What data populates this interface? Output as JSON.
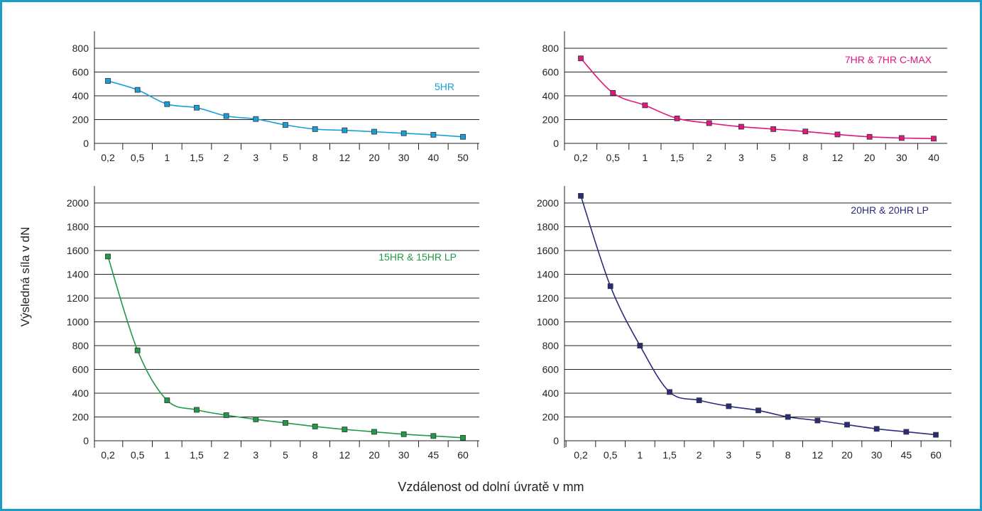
{
  "ylabel": "Výsledná síla v dN",
  "xlabel": "Vzdálenost od dolní úvratě v mm",
  "chart_data": [
    {
      "type": "line",
      "categories": [
        "0,2",
        "0,5",
        "1",
        "1,5",
        "2",
        "3",
        "5",
        "8",
        "12",
        "20",
        "30",
        "40",
        "50"
      ],
      "series": [
        {
          "name": "5HR",
          "values": [
            525,
            450,
            330,
            300,
            230,
            205,
            155,
            120,
            110,
            98,
            85,
            72,
            55
          ],
          "color": "#1a9ed9"
        }
      ],
      "yticks": [
        0,
        200,
        400,
        600,
        800
      ],
      "ylim": [
        0,
        800
      ]
    },
    {
      "type": "line",
      "categories": [
        "0,2",
        "0,5",
        "1",
        "1,5",
        "2",
        "3",
        "5",
        "8",
        "12",
        "20",
        "30",
        "40"
      ],
      "series": [
        {
          "name": "7HR & 7HR C-MAX",
          "values": [
            715,
            425,
            320,
            210,
            170,
            140,
            120,
            100,
            75,
            55,
            45,
            40
          ],
          "color": "#e0177d"
        }
      ],
      "yticks": [
        0,
        200,
        400,
        600,
        800
      ],
      "ylim": [
        0,
        800
      ]
    },
    {
      "type": "line",
      "categories": [
        "0,2",
        "0,5",
        "1",
        "1,5",
        "2",
        "3",
        "5",
        "8",
        "12",
        "20",
        "30",
        "45",
        "60"
      ],
      "series": [
        {
          "name": "15HR & 15HR LP",
          "values": [
            1550,
            760,
            340,
            260,
            215,
            180,
            150,
            120,
            95,
            75,
            55,
            40,
            25
          ],
          "color": "#1f9a48"
        }
      ],
      "yticks": [
        0,
        200,
        400,
        600,
        800,
        1000,
        1200,
        1400,
        1600,
        1800,
        2000
      ],
      "ylim": [
        0,
        2000
      ]
    },
    {
      "type": "line",
      "categories": [
        "0,2",
        "0,5",
        "1",
        "1,5",
        "2",
        "3",
        "5",
        "8",
        "12",
        "20",
        "30",
        "45",
        "60"
      ],
      "series": [
        {
          "name": "20HR & 20HR LP",
          "values": [
            2060,
            1300,
            800,
            410,
            340,
            290,
            255,
            200,
            170,
            135,
            100,
            75,
            50
          ],
          "color": "#2c2b7a"
        }
      ],
      "yticks": [
        0,
        200,
        400,
        600,
        800,
        1000,
        1200,
        1400,
        1600,
        1800,
        2000
      ],
      "ylim": [
        0,
        2000
      ]
    }
  ]
}
